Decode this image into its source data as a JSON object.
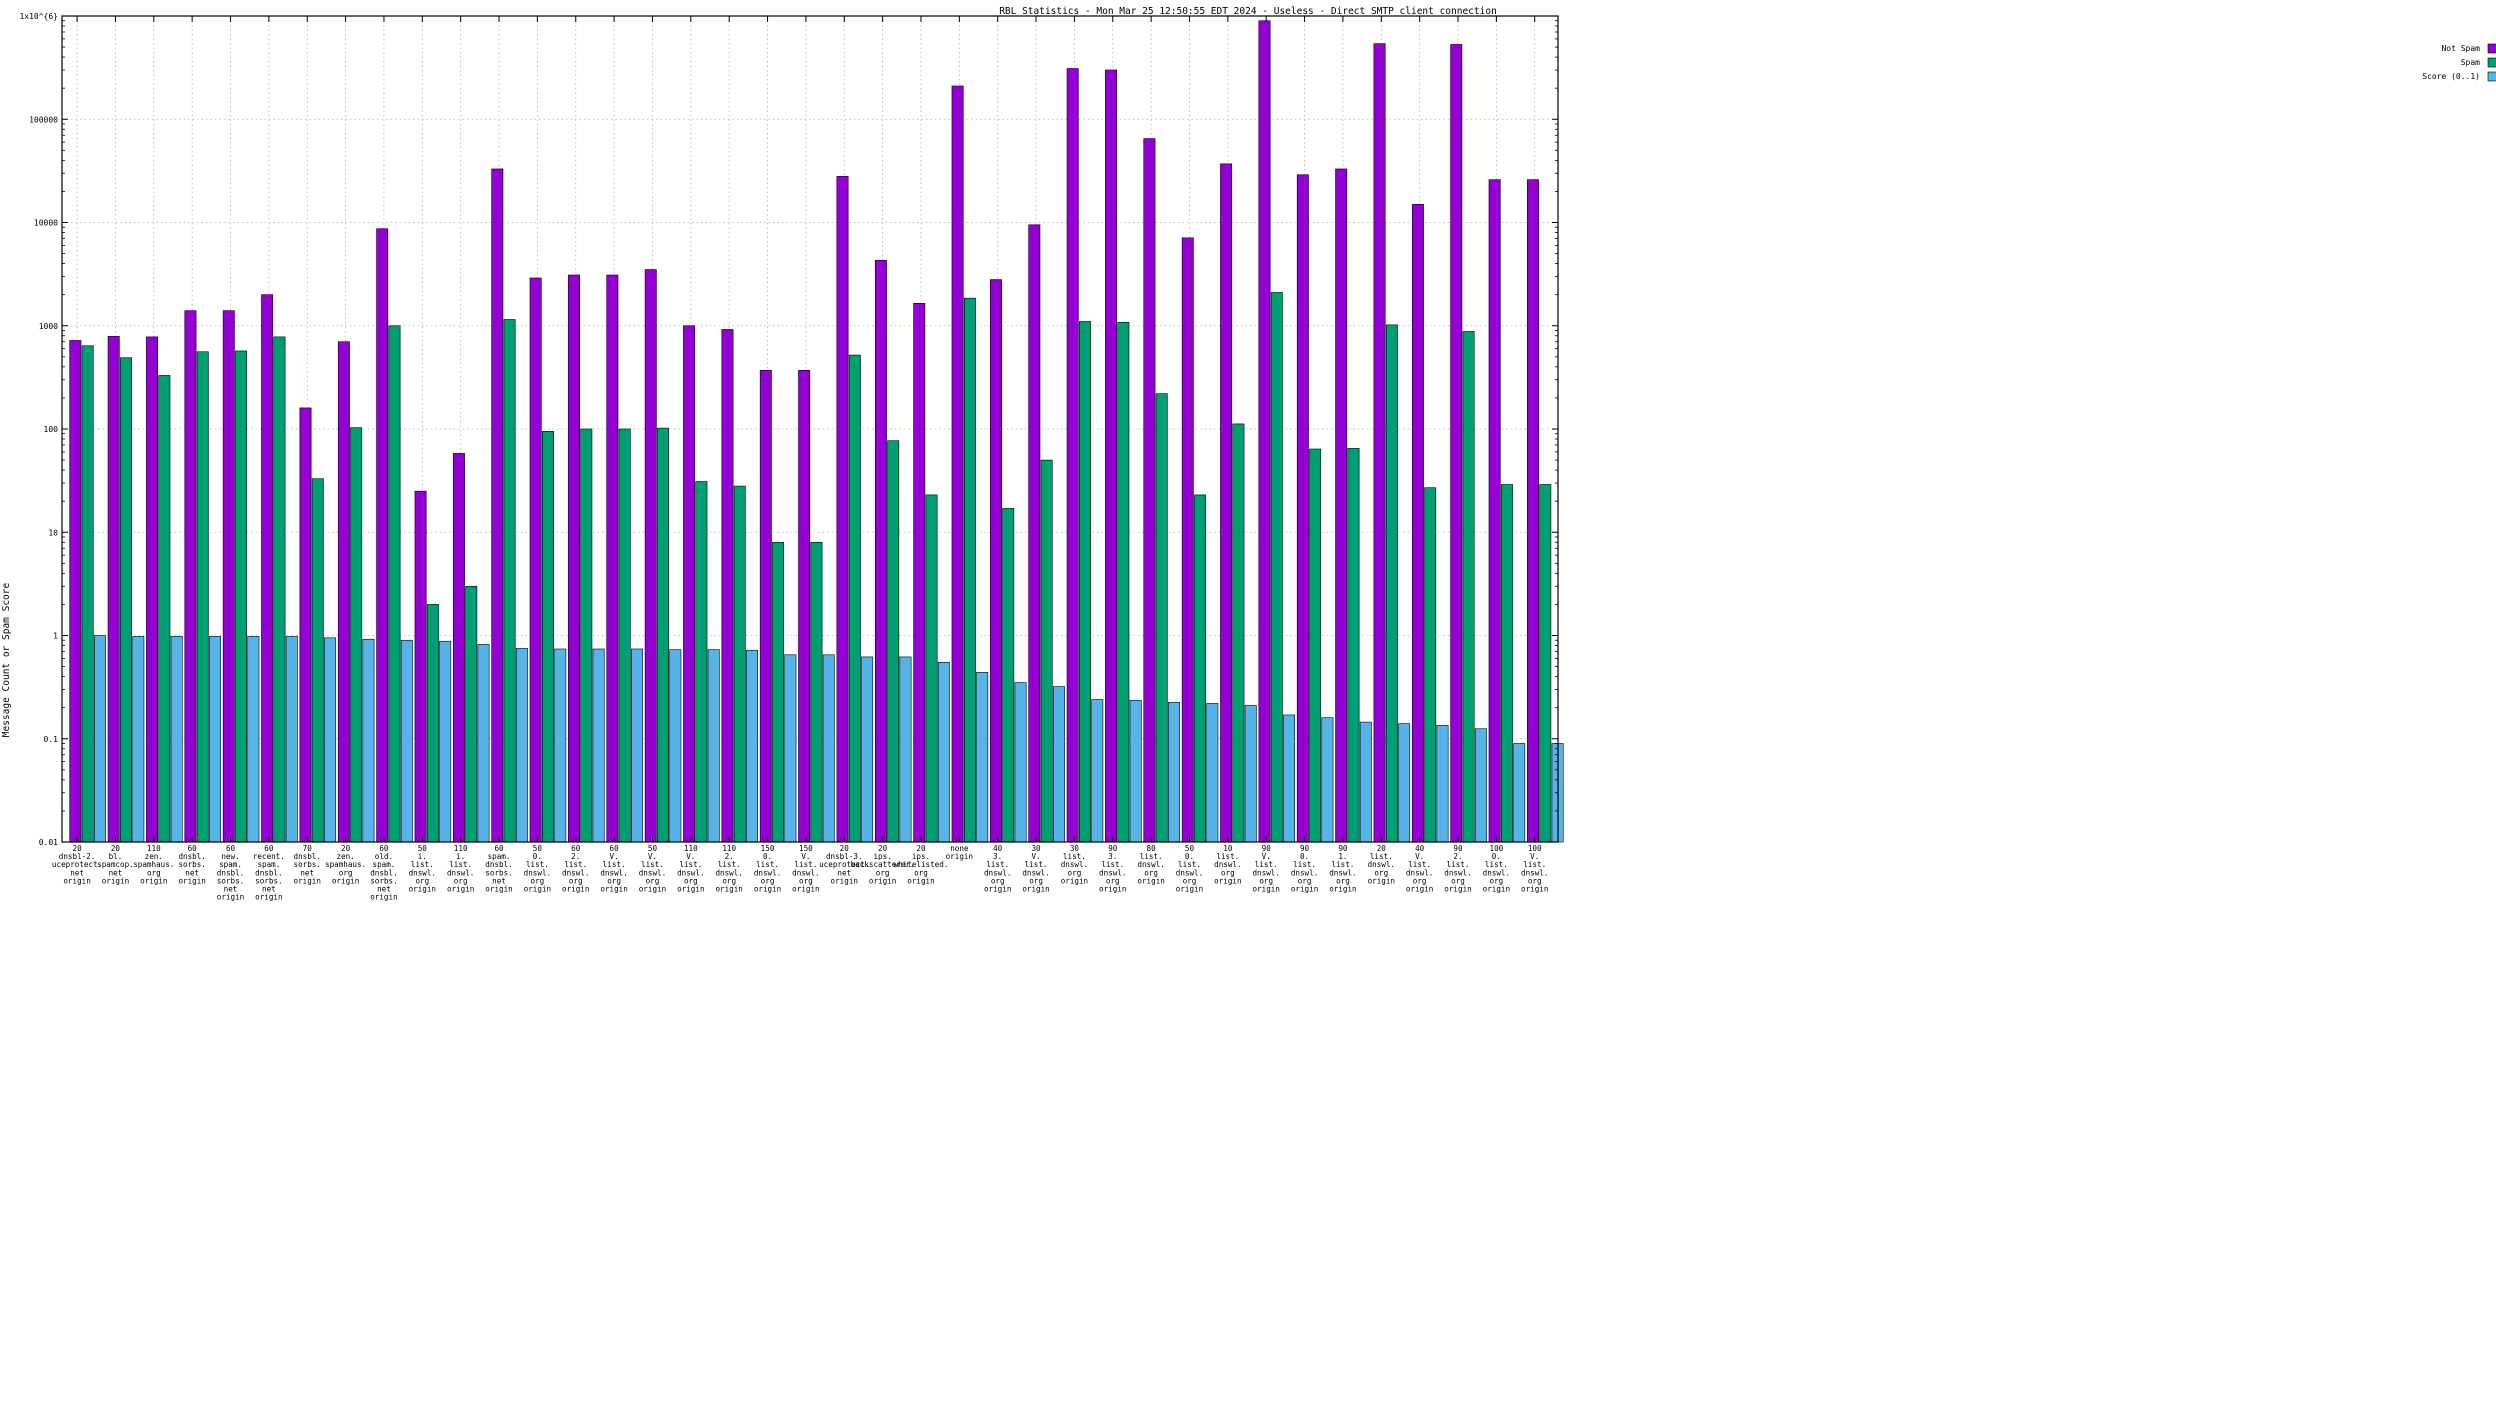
{
  "chart_data": {
    "type": "bar",
    "title": "RBL Statistics - Mon Mar 25 12:50:55 EDT 2024 - Useless - Direct SMTP client connection",
    "ylabel": "Message Count or Spam Score",
    "xlabel": "",
    "yscale": "log",
    "ylim": [
      0.01,
      1000000
    ],
    "ytick_values": [
      0.01,
      0.1,
      1,
      10,
      100,
      1000,
      10000,
      100000,
      1000000
    ],
    "ytick_labels": [
      "0.01",
      "0.1",
      "1",
      "10",
      "100",
      "1000",
      "10000",
      "100000",
      "1x10^{6}"
    ],
    "grid": true,
    "legend_position": "top-right",
    "categories": [
      [
        "20",
        "dnsbl-2.",
        "uceprotect.",
        "net",
        "origin"
      ],
      [
        "20",
        "bl.",
        "spamcop.",
        "net",
        "origin"
      ],
      [
        "110",
        "zen.",
        "spamhaus.",
        "org",
        "origin"
      ],
      [
        "60",
        "dnsbl.",
        "sorbs.",
        "net",
        "origin"
      ],
      [
        "60",
        "new.",
        "spam.",
        "dnsbl.",
        "sorbs.",
        "net",
        "origin"
      ],
      [
        "60",
        "recent.",
        "spam.",
        "dnsbl.",
        "sorbs.",
        "net",
        "origin"
      ],
      [
        "70",
        "dnsbl.",
        "sorbs.",
        "net",
        "origin"
      ],
      [
        "20",
        "zen.",
        "spamhaus.",
        "org",
        "origin"
      ],
      [
        "60",
        "old.",
        "spam.",
        "dnsbl.",
        "sorbs.",
        "net",
        "origin"
      ],
      [
        "50",
        "i.",
        "list.",
        "dnswl.",
        "org",
        "origin"
      ],
      [
        "110",
        "i.",
        "list.",
        "dnswl.",
        "org",
        "origin"
      ],
      [
        "60",
        "spam.",
        "dnsbl.",
        "sorbs.",
        "net",
        "origin"
      ],
      [
        "50",
        "0.",
        "list.",
        "dnswl.",
        "org",
        "origin"
      ],
      [
        "60",
        "2.",
        "list.",
        "dnswl.",
        "org",
        "origin"
      ],
      [
        "60",
        "V.",
        "list.",
        "dnswl.",
        "org",
        "origin"
      ],
      [
        "50",
        "V.",
        "list.",
        "dnswl.",
        "org",
        "origin"
      ],
      [
        "110",
        "V.",
        "list.",
        "dnswl.",
        "org",
        "origin"
      ],
      [
        "110",
        "2.",
        "list.",
        "dnswl.",
        "org",
        "origin"
      ],
      [
        "150",
        "0.",
        "list.",
        "dnswl.",
        "org",
        "origin"
      ],
      [
        "150",
        "V.",
        "list.",
        "dnswl.",
        "org",
        "origin"
      ],
      [
        "20",
        "dnsbl-3.",
        "uceprotect.",
        "net",
        "origin"
      ],
      [
        "20",
        "ips.",
        "backscatterer.",
        "org",
        "origin"
      ],
      [
        "20",
        "ips.",
        "whitelisted.",
        "org",
        "origin"
      ],
      [
        "none",
        "origin"
      ],
      [
        "40",
        "3.",
        "list.",
        "dnswl.",
        "org",
        "origin"
      ],
      [
        "30",
        "V.",
        "list.",
        "dnswl.",
        "org",
        "origin"
      ],
      [
        "30",
        "list.",
        "dnswl.",
        "org",
        "origin"
      ],
      [
        "90",
        "3.",
        "list.",
        "dnswl.",
        "org",
        "origin"
      ],
      [
        "80",
        "list.",
        "dnswl.",
        "org",
        "origin"
      ],
      [
        "50",
        "0.",
        "list.",
        "dnswl.",
        "org",
        "origin"
      ],
      [
        "10",
        "list.",
        "dnswl.",
        "org",
        "origin"
      ],
      [
        "90",
        "V.",
        "list.",
        "dnswl.",
        "org",
        "origin"
      ],
      [
        "90",
        "0.",
        "list.",
        "dnswl.",
        "org",
        "origin"
      ],
      [
        "90",
        "1.",
        "list.",
        "dnswl.",
        "org",
        "origin"
      ],
      [
        "20",
        "list.",
        "dnswl.",
        "org",
        "origin"
      ],
      [
        "40",
        "V.",
        "list.",
        "dnswl.",
        "org",
        "origin"
      ],
      [
        "90",
        "2.",
        "list.",
        "dnswl.",
        "org",
        "origin"
      ],
      [
        "100",
        "0.",
        "list.",
        "dnswl.",
        "org",
        "origin"
      ],
      [
        "100",
        "V.",
        "list.",
        "dnswl.",
        "org",
        "origin"
      ]
    ],
    "series": [
      {
        "name": "Not Spam",
        "color": "#9400d3",
        "values": [
          720,
          790,
          780,
          1400,
          1400,
          2000,
          160,
          700,
          8700,
          25,
          58,
          33000,
          2900,
          3100,
          3100,
          3500,
          1000,
          920,
          370,
          370,
          28000,
          4300,
          1650,
          210000,
          2800,
          9500,
          310000,
          300000,
          65000,
          7100,
          37000,
          900000,
          29000,
          33000,
          540000,
          15000,
          530000,
          26000,
          26000
        ]
      },
      {
        "name": "Spam",
        "color": "#009e73",
        "values": [
          640,
          490,
          330,
          560,
          570,
          780,
          33,
          103,
          1000,
          2,
          3,
          1150,
          95,
          100,
          100,
          102,
          31,
          28,
          8,
          8,
          520,
          77,
          23,
          1850,
          17,
          50,
          1100,
          1080,
          220,
          23,
          112,
          2100,
          64,
          65,
          1020,
          27,
          880,
          29,
          29
        ]
      },
      {
        "name": "Score (0..1)",
        "color": "#56b4e9",
        "values": [
          1.0,
          0.98,
          0.98,
          0.98,
          0.98,
          0.98,
          0.95,
          0.92,
          0.9,
          0.88,
          0.82,
          0.75,
          0.74,
          0.74,
          0.74,
          0.73,
          0.73,
          0.72,
          0.65,
          0.65,
          0.62,
          0.62,
          0.55,
          0.44,
          0.35,
          0.32,
          0.24,
          0.235,
          0.225,
          0.22,
          0.21,
          0.17,
          0.16,
          0.145,
          0.14,
          0.135,
          0.125,
          0.09,
          0.09
        ]
      }
    ]
  }
}
